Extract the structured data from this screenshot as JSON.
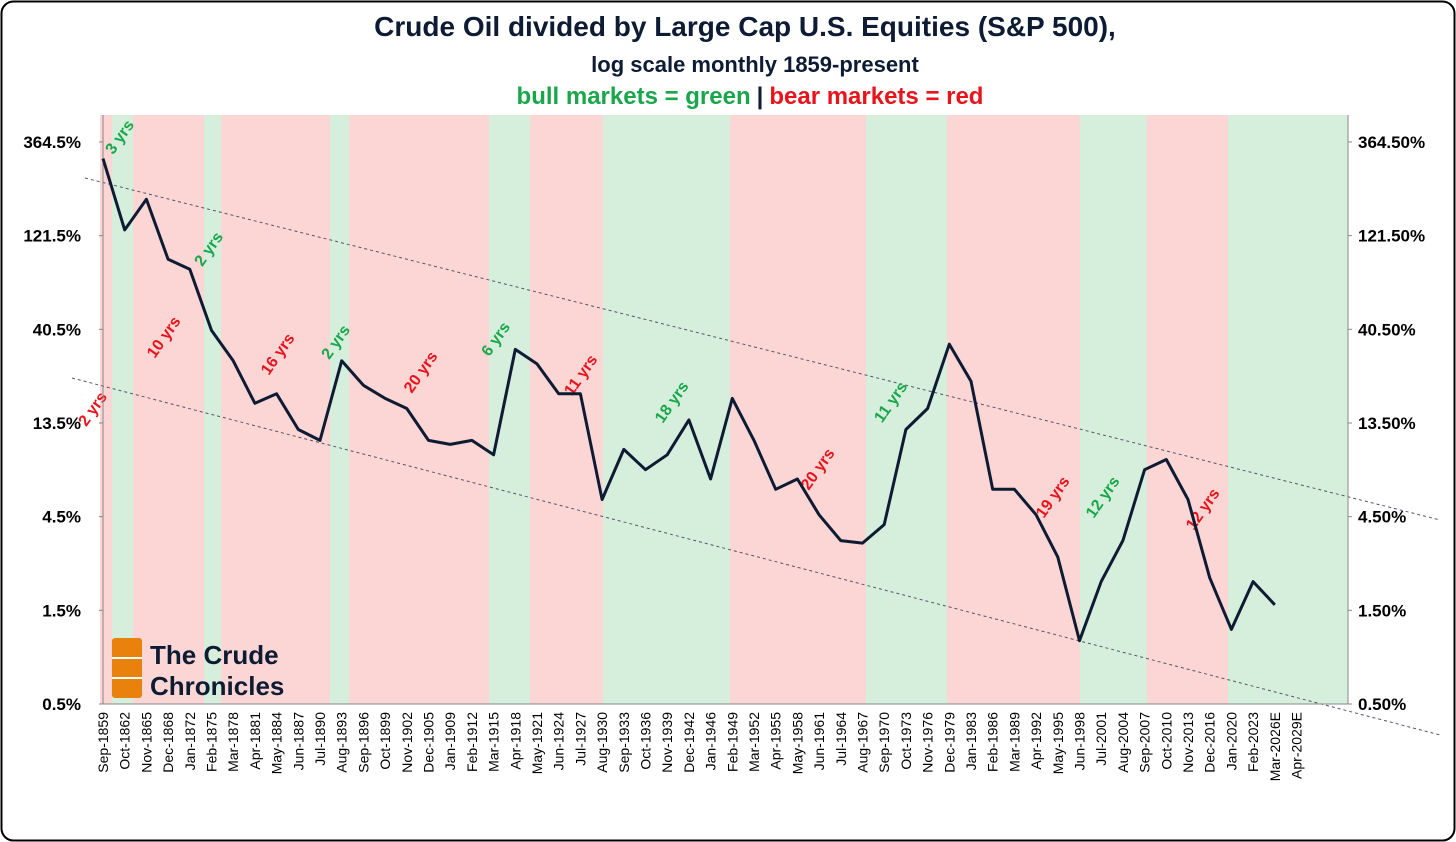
{
  "chart_data": {
    "type": "line",
    "title": "Crude Oil divided by Large Cap U.S. Equities (S&P 500),",
    "subtitle": "log scale monthly 1859-present",
    "legend_bull": "bull markets = green",
    "legend_sep": "|",
    "legend_bear": "bear markets = red",
    "logo": [
      "The Crude",
      "Chronicles"
    ],
    "log_scale": true,
    "categories": [
      "Sep-1859",
      "Oct-1862",
      "Nov-1865",
      "Dec-1868",
      "Jan-1872",
      "Feb-1875",
      "Mar-1878",
      "Apr-1881",
      "May-1884",
      "Jun-1887",
      "Jul-1890",
      "Aug-1893",
      "Sep-1896",
      "Oct-1899",
      "Nov-1902",
      "Dec-1905",
      "Jan-1909",
      "Feb-1912",
      "Mar-1915",
      "Apr-1918",
      "May-1921",
      "Jun-1924",
      "Jul-1927",
      "Aug-1930",
      "Sep-1933",
      "Oct-1936",
      "Nov-1939",
      "Dec-1942",
      "Jan-1946",
      "Feb-1949",
      "Mar-1952",
      "Apr-1955",
      "May-1958",
      "Jun-1961",
      "Jul-1964",
      "Aug-1967",
      "Sep-1970",
      "Oct-1973",
      "Nov-1976",
      "Dec-1979",
      "Jan-1983",
      "Feb-1986",
      "Mar-1989",
      "Apr-1992",
      "May-1995",
      "Jun-1998",
      "Jul-2001",
      "Aug-2004",
      "Sep-2007",
      "Oct-2010",
      "Nov-2013",
      "Dec-2016",
      "Jan-2020",
      "Feb-2023",
      "Mar-2026E",
      "Apr-2029E"
    ],
    "series": [
      {
        "color": "#0d1b33",
        "values": [
          300,
          130,
          186,
          92,
          82,
          40,
          28,
          17,
          19,
          12.5,
          11,
          28,
          21,
          18,
          16,
          11,
          10.5,
          11,
          9.3,
          32,
          27,
          19,
          19,
          5.5,
          9.9,
          7.8,
          9.3,
          14,
          7,
          18,
          11,
          6.2,
          7,
          4.6,
          3.4,
          3.3,
          4.1,
          12.5,
          16,
          34,
          22,
          6.2,
          6.2,
          4.6,
          2.8,
          1.05,
          2.1,
          3.4,
          7.8,
          8.8,
          5.5,
          2.2,
          1.2,
          2.1,
          1.6,
          null
        ]
      }
    ],
    "ylim": [
      0.5,
      500
    ],
    "yticks": [
      {
        "value": 0.5,
        "label": "0.5%"
      },
      {
        "value": 1.5,
        "label": "1.5%"
      },
      {
        "value": 4.5,
        "label": "4.5%"
      },
      {
        "value": 13.5,
        "label": "13.5%"
      },
      {
        "value": 40.5,
        "label": "40.5%"
      },
      {
        "value": 121.5,
        "label": "121.5%"
      },
      {
        "value": 364.5,
        "label": "364.5%"
      }
    ],
    "y2lim": [
      0.5,
      500
    ],
    "y2ticks": [
      {
        "value": 0.5,
        "label": "0.50%"
      },
      {
        "value": 1.5,
        "label": "1.50%"
      },
      {
        "value": 4.5,
        "label": "4.50%"
      },
      {
        "value": 13.5,
        "label": "13.50%"
      },
      {
        "value": 40.5,
        "label": "40.50%"
      },
      {
        "value": 121.5,
        "label": "121.50%"
      },
      {
        "value": 364.5,
        "label": "364.50%"
      }
    ],
    "regions": [
      {
        "label": "2 yrs",
        "color": "#fcd5d5",
        "text_color": "#e8141b"
      },
      {
        "label": "3 yrs",
        "color": "#d5efdc",
        "text_color": "#1aa64a"
      },
      {
        "label": "10 yrs",
        "color": "#fcd5d5",
        "text_color": "#e8141b"
      },
      {
        "label": "2 yrs",
        "color": "#d5efdc",
        "text_color": "#1aa64a"
      },
      {
        "label": "16 yrs",
        "color": "#fcd5d5",
        "text_color": "#e8141b"
      },
      {
        "label": "2 yrs",
        "color": "#d5efdc",
        "text_color": "#1aa64a"
      },
      {
        "label": "20 yrs",
        "color": "#fcd5d5",
        "text_color": "#e8141b"
      },
      {
        "label": "6 yrs",
        "color": "#d5efdc",
        "text_color": "#1aa64a"
      },
      {
        "label": "11 yrs",
        "color": "#fcd5d5",
        "text_color": "#e8141b"
      },
      {
        "label": "18 yrs",
        "color": "#d5efdc",
        "text_color": "#1aa64a"
      },
      {
        "label": "20 yrs",
        "color": "#fcd5d5",
        "text_color": "#e8141b"
      },
      {
        "label": "11 yrs",
        "color": "#d5efdc",
        "text_color": "#1aa64a"
      },
      {
        "label": "19 yrs",
        "color": "#fcd5d5",
        "text_color": "#e8141b"
      },
      {
        "label": "12 yrs",
        "color": "#d5efdc",
        "text_color": "#1aa64a"
      },
      {
        "label": "12 yrs",
        "color": "#fcd5d5",
        "text_color": "#e8141b"
      },
      {
        "color": "#d5efdc"
      }
    ]
  }
}
